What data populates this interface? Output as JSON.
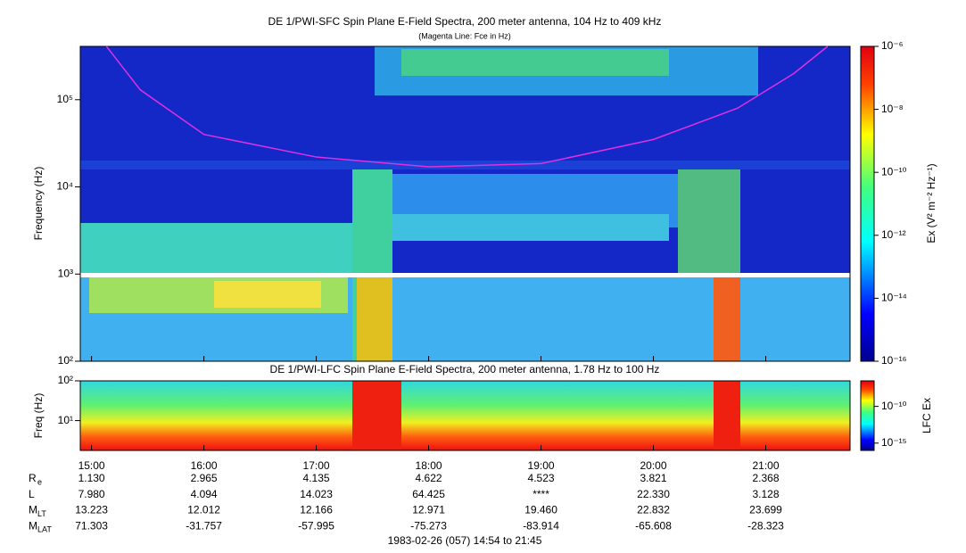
{
  "chart_data": [
    {
      "type": "spectrogram",
      "title": "DE 1/PWI-SFC  Spin Plane E-Field Spectra, 200 meter antenna, 104 Hz to 409 kHz",
      "subtitle": "(Magenta Line: Fce in Hz)",
      "y_label": "Frequency (Hz)",
      "log_y": true,
      "ylim": [
        100,
        409000
      ],
      "yticks": [
        {
          "value": 100,
          "label": "10²"
        },
        {
          "value": 1000,
          "label": "10³"
        },
        {
          "value": 10000,
          "label": "10⁴"
        },
        {
          "value": 100000,
          "label": "10⁵"
        }
      ],
      "colorbar_label": "Ex (V² m⁻² Hz⁻¹)",
      "clim": [
        1e-16,
        1e-06
      ],
      "cticks": [
        {
          "value": 1e-06,
          "label": "10⁻⁶"
        },
        {
          "value": 1e-08,
          "label": "10⁻⁸"
        },
        {
          "value": 1e-10,
          "label": "10⁻¹⁰"
        },
        {
          "value": 1e-12,
          "label": "10⁻¹²"
        },
        {
          "value": 1e-14,
          "label": "10⁻¹⁴"
        },
        {
          "value": 1e-16,
          "label": "10⁻¹⁶"
        }
      ],
      "fce": {
        "color": "#e030e0",
        "x": [
          "15:08",
          "15:26",
          "16:00",
          "17:00",
          "18:00",
          "19:00",
          "20:00",
          "20:45",
          "21:15",
          "21:33"
        ],
        "values": [
          409000,
          130000,
          40000,
          22000,
          17000,
          18500,
          35000,
          80000,
          200000,
          409000
        ]
      }
    },
    {
      "type": "spectrogram",
      "title": "DE 1/PWI-LFC  Spin Plane E-Field Spectra, 200 meter antenna, 1.78 Hz to 100 Hz",
      "y_label": "Freq (Hz)",
      "log_y": true,
      "ylim": [
        1.78,
        100
      ],
      "yticks": [
        {
          "value": 10,
          "label": "10¹"
        },
        {
          "value": 100,
          "label": "10²"
        }
      ],
      "colorbar_label": "LFC Ex",
      "clim": [
        1e-16,
        3e-07
      ],
      "cticks": [
        {
          "value": 1e-10,
          "label": "10⁻¹⁰"
        },
        {
          "value": 1e-15,
          "label": "10⁻¹⁵"
        }
      ],
      "xlim": [
        "14:54",
        "21:45"
      ],
      "xticks": [
        "15:00",
        "16:00",
        "17:00",
        "18:00",
        "19:00",
        "20:00",
        "21:00"
      ]
    }
  ],
  "ephemeris": [
    {
      "label": "R",
      "sub": "e",
      "values": [
        "1.130",
        "2.965",
        "4.135",
        "4.622",
        "4.523",
        "3.821",
        "2.368"
      ]
    },
    {
      "label": "L",
      "sub": "",
      "values": [
        "7.980",
        "4.094",
        "14.023",
        "64.425",
        "****",
        "22.330",
        "3.128"
      ]
    },
    {
      "label": "M",
      "sub": "LT",
      "values": [
        "13.223",
        "12.012",
        "12.166",
        "12.971",
        "19.460",
        "22.832",
        "23.699"
      ]
    },
    {
      "label": "M",
      "sub": "LAT",
      "values": [
        "71.303",
        "-31.757",
        "-57.995",
        "-75.273",
        "-83.914",
        "-65.608",
        "-28.323"
      ]
    }
  ],
  "footer": "1983-02-26 (057) 14:54 to 21:45"
}
